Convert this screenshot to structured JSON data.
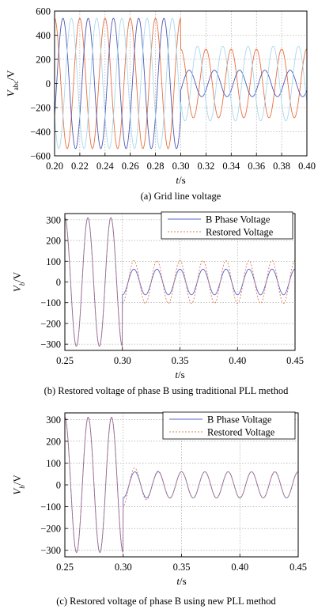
{
  "chart_data": [
    {
      "type": "line",
      "caption": "(a) Grid line voltage",
      "xlabel": "t/s",
      "ylabel": "Vabc/V",
      "xlim": [
        0.2,
        0.4
      ],
      "ylim": [
        -600,
        600
      ],
      "xticks": [
        "0.20",
        "0.22",
        "0.24",
        "0.26",
        "0.28",
        "0.30",
        "0.32",
        "0.34",
        "0.36",
        "0.38",
        "0.40"
      ],
      "yticks": [
        "600",
        "400",
        "200",
        "0",
        "−200",
        "−400",
        "−600"
      ],
      "grid": true,
      "frequency_hz": 50,
      "fault_time": 0.3,
      "series": [
        {
          "color": "#e8703f",
          "amp_before": 540,
          "amp_after": 285,
          "phase_deg": 90
        },
        {
          "color": "#4e59b4",
          "amp_before": 540,
          "amp_after": 110,
          "phase_deg": -30
        },
        {
          "color": "#a9d8ef",
          "amp_before": 540,
          "amp_after": 310,
          "phase_deg": 210
        }
      ]
    },
    {
      "type": "line",
      "caption": "(b) Restored voltage of phase B using traditional PLL method",
      "xlabel": "t/s",
      "ylabel": "Vb/V",
      "xlim": [
        0.25,
        0.45
      ],
      "ylim": [
        -330,
        330
      ],
      "xticks": [
        "0.25",
        "0.30",
        "0.35",
        "0.40",
        "0.45"
      ],
      "yticks": [
        "300",
        "200",
        "100",
        "0",
        "−100",
        "−200",
        "−300"
      ],
      "grid": true,
      "legend": "top-right",
      "fault_time": 0.3,
      "series": [
        {
          "name": "B Phase Voltage",
          "color": "#5a63c8",
          "dash": "none",
          "amp_before": 310,
          "amp_after": 62
        },
        {
          "name": "Restored Voltage",
          "color": "#e07a56",
          "dash": "2,2",
          "amp_before": 310,
          "amp_after": 103
        }
      ]
    },
    {
      "type": "line",
      "caption": "(c) Restored voltage of phase B using new PLL method",
      "xlabel": "t/s",
      "ylabel": "Vb/V",
      "xlim": [
        0.25,
        0.45
      ],
      "ylim": [
        -330,
        330
      ],
      "xticks": [
        "0.25",
        "0.30",
        "0.35",
        "0.40",
        "0.45"
      ],
      "yticks": [
        "300",
        "200",
        "100",
        "0",
        "−100",
        "−200",
        "−300"
      ],
      "grid": true,
      "legend": "top-right",
      "fault_time": 0.3,
      "series": [
        {
          "name": "B Phase Voltage",
          "color": "#5a63c8",
          "dash": "none",
          "amp_before": 310,
          "amp_after": 60
        },
        {
          "name": "Restored Voltage",
          "color": "#e07a56",
          "dash": "2,2",
          "amp_before": 310,
          "amp_after": 60,
          "transient_peak": 100
        }
      ]
    }
  ]
}
